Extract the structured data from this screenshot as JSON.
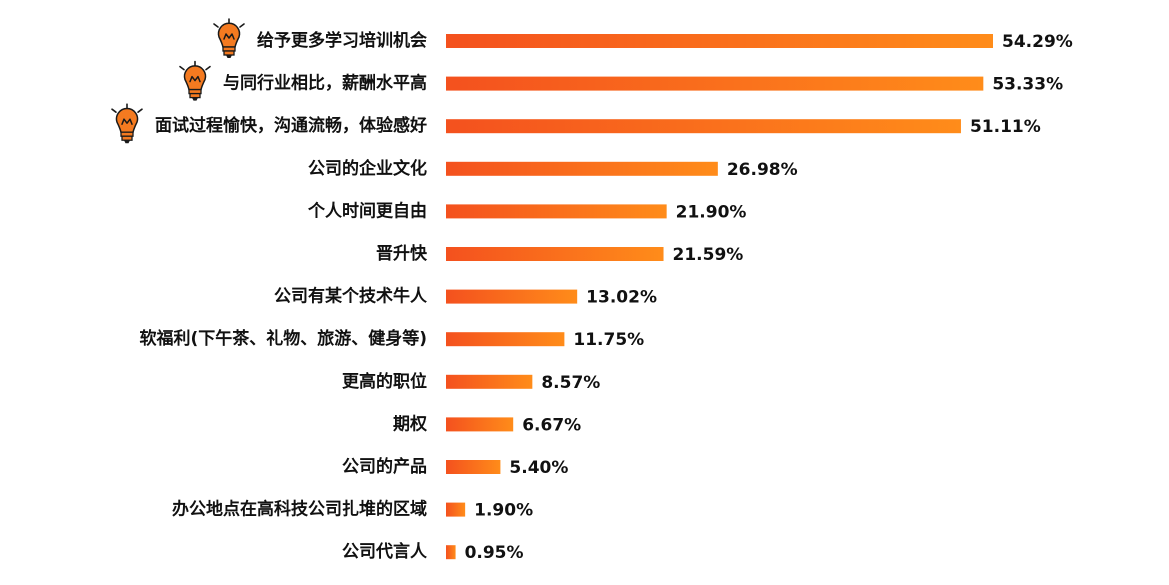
{
  "chart_data": {
    "type": "bar",
    "orientation": "horizontal",
    "categories": [
      "给予更多学习培训机会",
      "与同行业相比，薪酬水平高",
      "面试过程愉快，沟通流畅，体验感好",
      "公司的企业文化",
      "个人时间更自由",
      "晋升快",
      "公司有某个技术牛人",
      "软福利(下午茶、礼物、旅游、健身等)",
      "更高的职位",
      "期权",
      "公司的产品",
      "办公地点在高科技公司扎堆的区域",
      "公司代言人"
    ],
    "values": [
      54.29,
      53.33,
      51.11,
      26.98,
      21.9,
      21.59,
      13.02,
      11.75,
      8.57,
      6.67,
      5.4,
      1.9,
      0.95
    ],
    "value_labels": [
      "54.29%",
      "53.33%",
      "51.11%",
      "26.98%",
      "21.90%",
      "21.59%",
      "13.02%",
      "11.75%",
      "8.57%",
      "6.67%",
      "5.40%",
      "1.90%",
      "0.95%"
    ],
    "highlighted": [
      true,
      true,
      true,
      false,
      false,
      false,
      false,
      false,
      false,
      false,
      false,
      false,
      false
    ],
    "highlight_icon": "lightbulb-icon",
    "xlim": [
      0,
      54.29
    ],
    "grid": false,
    "colors": {
      "bar_start": "#f4511e",
      "bar_end": "#ff8c1a",
      "icon_fill": "#f47a20",
      "icon_outline": "#1a1a1a"
    }
  }
}
